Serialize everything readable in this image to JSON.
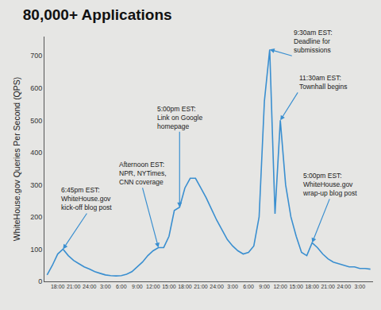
{
  "chart_data": {
    "type": "line",
    "title": "80,000+ Applications",
    "y_label": "WhiteHouse.gov Queries Per Second (QPS)",
    "categories": [
      null,
      null,
      "18:00",
      null,
      null,
      "21:00",
      null,
      null,
      "24:00",
      null,
      null,
      "3:00",
      null,
      null,
      "6:00",
      null,
      null,
      "9:00",
      null,
      null,
      "12:00",
      null,
      null,
      "15:00",
      null,
      null,
      "18:00",
      null,
      null,
      "21:00",
      null,
      null,
      "24:00",
      null,
      null,
      "3:00",
      null,
      null,
      "6:00",
      null,
      null,
      "9:00",
      null,
      null,
      "12:00",
      null,
      null,
      "15:00",
      null,
      null,
      "18:00",
      null,
      null,
      "21:00",
      null,
      null,
      "24:00",
      null,
      null,
      "3:00",
      null,
      null
    ],
    "values": [
      20,
      50,
      85,
      100,
      80,
      65,
      55,
      45,
      38,
      30,
      25,
      20,
      18,
      17,
      18,
      22,
      30,
      45,
      60,
      80,
      95,
      105,
      105,
      140,
      220,
      230,
      290,
      320,
      320,
      290,
      260,
      225,
      190,
      160,
      130,
      110,
      95,
      85,
      90,
      110,
      200,
      560,
      720,
      210,
      500,
      300,
      200,
      140,
      90,
      80,
      120,
      105,
      85,
      70,
      60,
      55,
      50,
      45,
      45,
      40,
      40,
      38
    ],
    "color": "#3a8fd0",
    "ylim": [
      0,
      760
    ],
    "yticks": [
      0,
      100,
      200,
      300,
      400,
      500,
      600,
      700
    ],
    "grid": false,
    "annotations": [
      {
        "text": "6:45pm EST:\nWhiteHouse.gov\nkick-off blog post",
        "x": 3,
        "y": 100
      },
      {
        "text": "Afternoon EST:\nNPR, NYTimes,\nCNN coverage",
        "x": 21,
        "y": 105
      },
      {
        "text": "5:00pm EST:\nLink on Google\nhomepage",
        "x": 25,
        "y": 230
      },
      {
        "text": "9:30am EST:\nDeadline for\nsubmissions",
        "x": 42,
        "y": 720
      },
      {
        "text": "11:30am EST:\nTownhall begins",
        "x": 44,
        "y": 500
      },
      {
        "text": "5:00pm EST:\nWhiteHouse.gov\nwrap-up blog post",
        "x": 50,
        "y": 120
      }
    ]
  }
}
